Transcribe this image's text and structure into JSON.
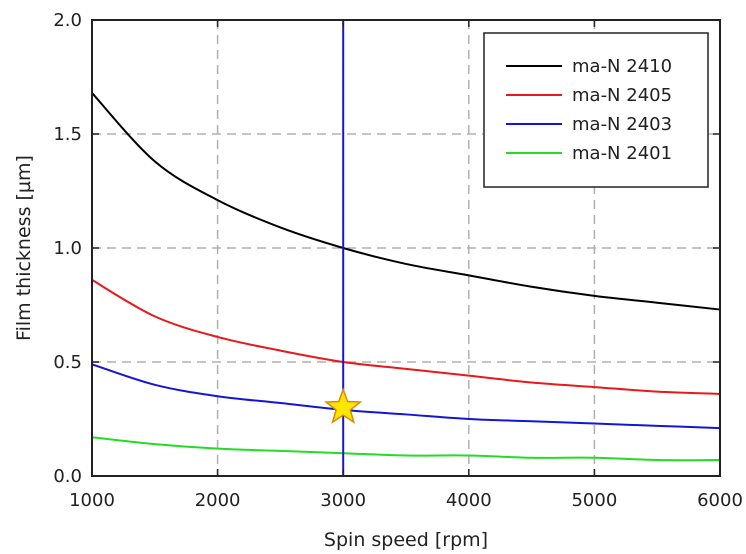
{
  "chart_data": {
    "type": "line",
    "title": "",
    "xlabel": "Spin speed [rpm]",
    "ylabel": "Film thickness [µm]",
    "xlim": [
      1000,
      6000
    ],
    "ylim": [
      0.0,
      2.0
    ],
    "xticks": [
      1000,
      2000,
      3000,
      4000,
      5000,
      6000
    ],
    "xtick_labels": [
      "1000",
      "2000",
      "3000",
      "4000",
      "5000",
      "6000"
    ],
    "yticks": [
      0.0,
      0.5,
      1.0,
      1.5,
      2.0
    ],
    "ytick_labels": [
      "0.0",
      "0.5",
      "1.0",
      "1.5",
      "2.0"
    ],
    "grid": true,
    "legend_position": "top-right",
    "x": [
      1000,
      1500,
      2000,
      2500,
      3000,
      3500,
      4000,
      4500,
      5000,
      5500,
      6000
    ],
    "series": [
      {
        "name": "ma-N 2410",
        "color": "#000000",
        "values": [
          1.68,
          1.38,
          1.21,
          1.09,
          1.0,
          0.93,
          0.88,
          0.83,
          0.79,
          0.76,
          0.73
        ]
      },
      {
        "name": "ma-N 2405",
        "color": "#e8191c",
        "values": [
          0.86,
          0.7,
          0.61,
          0.55,
          0.5,
          0.47,
          0.44,
          0.41,
          0.39,
          0.37,
          0.36
        ]
      },
      {
        "name": "ma-N 2403",
        "color": "#1515d6",
        "values": [
          0.49,
          0.4,
          0.35,
          0.32,
          0.29,
          0.27,
          0.25,
          0.24,
          0.23,
          0.22,
          0.21
        ]
      },
      {
        "name": "ma-N 2401",
        "color": "#22dd22",
        "values": [
          0.17,
          0.14,
          0.12,
          0.11,
          0.1,
          0.09,
          0.09,
          0.08,
          0.08,
          0.07,
          0.07
        ]
      }
    ],
    "annotations": {
      "vertical_line": {
        "x": 3000,
        "color": "#1515d6"
      },
      "star_marker": {
        "x": 3000,
        "y": 0.3,
        "fill": "#ffe600",
        "stroke": "#d98a00"
      }
    }
  }
}
